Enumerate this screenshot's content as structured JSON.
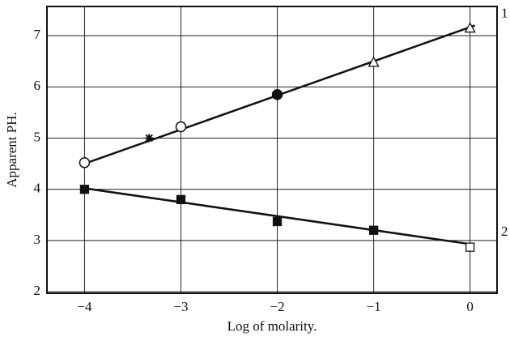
{
  "chart_data": {
    "type": "scatter",
    "xlabel": "Log of molarity.",
    "ylabel": "Apparent PH.",
    "xlim": [
      -4.39,
      0.28
    ],
    "ylim": [
      1.97,
      7.57
    ],
    "xticks": [
      {
        "value": -4,
        "label": "−4"
      },
      {
        "value": -3,
        "label": "−3"
      },
      {
        "value": -2,
        "label": "−2"
      },
      {
        "value": -1,
        "label": "−1"
      },
      0
    ],
    "yticks": [
      2,
      3,
      4,
      5,
      6,
      7
    ],
    "grid": true,
    "series": [
      {
        "name": "1",
        "color": "#111",
        "x": [
          -4,
          -3.33,
          -3,
          -2,
          -1,
          0
        ],
        "values": [
          4.52,
          5.0,
          5.22,
          5.85,
          6.48,
          7.15
        ],
        "markers": [
          "open-circle",
          "star",
          "open-circle",
          "filled-circle",
          "open-triangle",
          "open-triangle"
        ],
        "fit": {
          "x": [
            -4,
            0.05
          ],
          "y": [
            4.5,
            7.2
          ]
        }
      },
      {
        "name": "2",
        "color": "#111",
        "x": [
          -4,
          -3,
          -2,
          -1,
          0
        ],
        "values": [
          4.0,
          3.8,
          3.37,
          3.2,
          2.87
        ],
        "markers": [
          "filled-square",
          "filled-square",
          "filled-square",
          "filled-square",
          "open-square"
        ],
        "fit": {
          "x": [
            -4,
            0
          ],
          "y": [
            4.02,
            2.93
          ]
        }
      }
    ]
  }
}
